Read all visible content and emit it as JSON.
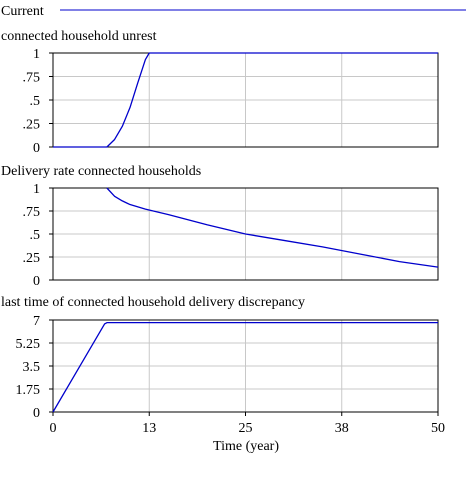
{
  "header": {
    "legend_label": "Current",
    "line_color": "#0000cc"
  },
  "chart_data": [
    {
      "type": "line",
      "title": "connected household unrest",
      "xlim": [
        0,
        50
      ],
      "ylim": [
        0,
        1
      ],
      "y_ticks": [
        "0",
        ".25",
        ".5",
        ".75",
        "1"
      ],
      "y_tick_values": [
        0,
        0.25,
        0.5,
        0.75,
        1
      ],
      "grid": true,
      "series": [
        {
          "name": "Current",
          "color": "#0000cc",
          "x": [
            0,
            7,
            8,
            9,
            10,
            11,
            12,
            12.5,
            13,
            14,
            20,
            30,
            40,
            50
          ],
          "y": [
            0,
            0,
            0.08,
            0.22,
            0.42,
            0.68,
            0.93,
            1,
            1,
            1,
            1,
            1,
            1,
            1
          ]
        }
      ]
    },
    {
      "type": "line",
      "title": "Delivery rate connected households",
      "xlim": [
        0,
        50
      ],
      "ylim": [
        0,
        1
      ],
      "y_ticks": [
        "0",
        ".25",
        ".5",
        ".75",
        "1"
      ],
      "y_tick_values": [
        0,
        0.25,
        0.5,
        0.75,
        1
      ],
      "grid": true,
      "series": [
        {
          "name": "Current",
          "color": "#0000cc",
          "x": [
            7,
            8,
            9,
            10,
            12,
            15,
            20,
            25,
            30,
            35,
            40,
            45,
            50
          ],
          "y": [
            1,
            0.91,
            0.86,
            0.82,
            0.77,
            0.71,
            0.6,
            0.5,
            0.43,
            0.36,
            0.28,
            0.2,
            0.14
          ]
        }
      ]
    },
    {
      "type": "line",
      "title": "last time of connected household delivery discrepancy",
      "xlim": [
        0,
        50
      ],
      "ylim": [
        0,
        7
      ],
      "y_ticks": [
        "0",
        "1.75",
        "3.5",
        "5.25",
        "7"
      ],
      "y_tick_values": [
        0,
        1.75,
        3.5,
        5.25,
        7
      ],
      "grid": true,
      "x_ticks": [
        "0",
        "13",
        "25",
        "38",
        "50"
      ],
      "x_tick_values": [
        0,
        12.5,
        25,
        37.5,
        50
      ],
      "xlabel": "Time (year)",
      "series": [
        {
          "name": "Current",
          "color": "#0000cc",
          "x": [
            0,
            6.7,
            7,
            10,
            20,
            30,
            40,
            50
          ],
          "y": [
            0,
            6.7,
            6.8,
            6.8,
            6.8,
            6.8,
            6.8,
            6.8
          ]
        }
      ]
    }
  ]
}
